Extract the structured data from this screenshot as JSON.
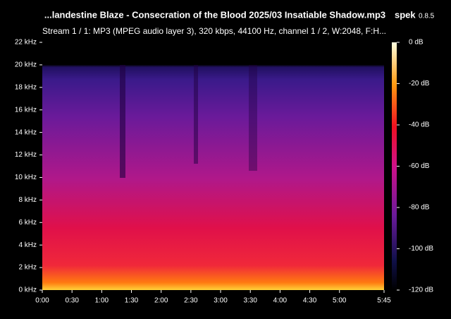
{
  "window": {
    "title": "...landestine Blaze - Consecration of the Blood 2025/03 Insatiable Shadow.mp3",
    "app": "spek",
    "version": "0.8.5",
    "stream_info": "Stream 1 / 1: MP3 (MPEG audio layer 3), 320 kbps, 44100 Hz, channel 1 / 2, W:2048, F:H..."
  },
  "frequency_axis": {
    "lim": [
      0,
      22
    ],
    "ticks": [
      {
        "value": 0,
        "label": "0 kHz"
      },
      {
        "value": 2,
        "label": "2 kHz"
      },
      {
        "value": 4,
        "label": "4 kHz"
      },
      {
        "value": 6,
        "label": "6 kHz"
      },
      {
        "value": 8,
        "label": "8 kHz"
      },
      {
        "value": 10,
        "label": "10 kHz"
      },
      {
        "value": 12,
        "label": "12 kHz"
      },
      {
        "value": 14,
        "label": "14 kHz"
      },
      {
        "value": 16,
        "label": "16 kHz"
      },
      {
        "value": 18,
        "label": "18 kHz"
      },
      {
        "value": 20,
        "label": "20 kHz"
      },
      {
        "value": 22,
        "label": "22 kHz"
      }
    ]
  },
  "time_axis": {
    "lim": [
      0,
      345
    ],
    "ticks": [
      {
        "value": 0,
        "label": "0:00"
      },
      {
        "value": 30,
        "label": "0:30"
      },
      {
        "value": 60,
        "label": "1:00"
      },
      {
        "value": 90,
        "label": "1:30"
      },
      {
        "value": 120,
        "label": "2:00"
      },
      {
        "value": 150,
        "label": "2:30"
      },
      {
        "value": 180,
        "label": "3:00"
      },
      {
        "value": 210,
        "label": "3:30"
      },
      {
        "value": 240,
        "label": "4:00"
      },
      {
        "value": 270,
        "label": "4:30"
      },
      {
        "value": 300,
        "label": "5:00"
      },
      {
        "value": 345,
        "label": "5:45"
      }
    ]
  },
  "db_scale": {
    "lim": [
      -120,
      0
    ],
    "ticks": [
      {
        "value": 0,
        "label": "0 dB"
      },
      {
        "value": -20,
        "label": "-20 dB"
      },
      {
        "value": -40,
        "label": "-40 dB"
      },
      {
        "value": -60,
        "label": "-60 dB"
      },
      {
        "value": -80,
        "label": "-80 dB"
      },
      {
        "value": -100,
        "label": "-100 dB"
      },
      {
        "value": -120,
        "label": "-120 dB"
      }
    ]
  }
}
